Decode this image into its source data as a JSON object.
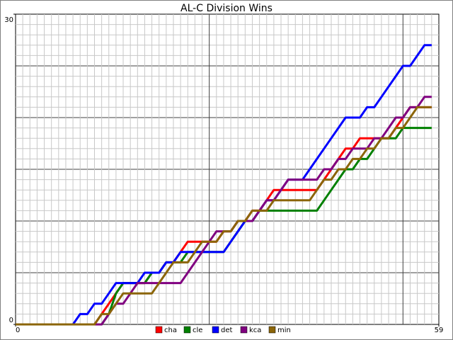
{
  "chart_data": {
    "type": "line",
    "title": "AL-C Division Wins",
    "x": [
      0,
      1,
      2,
      3,
      4,
      5,
      6,
      7,
      8,
      9,
      10,
      11,
      12,
      13,
      14,
      15,
      16,
      17,
      18,
      19,
      20,
      21,
      22,
      23,
      24,
      25,
      26,
      27,
      28,
      29,
      30,
      31,
      32,
      33,
      34,
      35,
      36,
      37,
      38,
      39,
      40,
      41,
      42,
      43,
      44,
      45,
      46,
      47,
      48,
      49,
      50,
      51,
      52,
      53,
      54,
      55,
      56,
      57,
      58
    ],
    "series": [
      {
        "name": "cha",
        "color": "#ff0000",
        "values": [
          0,
          0,
          0,
          0,
          0,
          0,
          0,
          0,
          0,
          0,
          0,
          0,
          1,
          2,
          3,
          4,
          4,
          4,
          4,
          5,
          5,
          6,
          6,
          7,
          8,
          8,
          8,
          8,
          8,
          9,
          9,
          10,
          10,
          11,
          11,
          12,
          13,
          13,
          13,
          13,
          13,
          13,
          13,
          14,
          15,
          16,
          17,
          17,
          18,
          18,
          18,
          18,
          18,
          19,
          20,
          21,
          21,
          21,
          21
        ]
      },
      {
        "name": "cle",
        "color": "#008000",
        "values": [
          0,
          0,
          0,
          0,
          0,
          0,
          0,
          0,
          0,
          0,
          0,
          0,
          0,
          1,
          3,
          4,
          4,
          4,
          4,
          5,
          5,
          6,
          6,
          6,
          7,
          7,
          7,
          7,
          7,
          7,
          8,
          9,
          10,
          10,
          11,
          11,
          11,
          11,
          11,
          11,
          11,
          11,
          11,
          12,
          13,
          14,
          15,
          15,
          16,
          16,
          17,
          18,
          18,
          18,
          19,
          19,
          19,
          19,
          19
        ]
      },
      {
        "name": "det",
        "color": "#0000ff",
        "values": [
          0,
          0,
          0,
          0,
          0,
          0,
          0,
          0,
          0,
          1,
          1,
          2,
          2,
          3,
          4,
          4,
          4,
          4,
          5,
          5,
          5,
          6,
          6,
          7,
          7,
          7,
          7,
          7,
          7,
          7,
          8,
          9,
          10,
          10,
          11,
          12,
          12,
          13,
          14,
          14,
          14,
          15,
          16,
          17,
          18,
          19,
          20,
          20,
          20,
          21,
          21,
          22,
          23,
          24,
          25,
          25,
          26,
          27,
          27
        ]
      },
      {
        "name": "kca",
        "color": "#800080",
        "values": [
          0,
          0,
          0,
          0,
          0,
          0,
          0,
          0,
          0,
          0,
          0,
          0,
          0,
          1,
          2,
          2,
          3,
          4,
          4,
          4,
          4,
          4,
          4,
          4,
          5,
          6,
          7,
          8,
          9,
          9,
          9,
          10,
          10,
          10,
          11,
          12,
          12,
          13,
          14,
          14,
          14,
          14,
          14,
          15,
          15,
          16,
          16,
          17,
          17,
          17,
          18,
          18,
          19,
          20,
          20,
          21,
          21,
          22,
          22
        ]
      },
      {
        "name": "min",
        "color": "#8b6508",
        "values": [
          0,
          0,
          0,
          0,
          0,
          0,
          0,
          0,
          0,
          0,
          0,
          0,
          1,
          1,
          2,
          3,
          3,
          3,
          3,
          3,
          4,
          5,
          6,
          6,
          6,
          7,
          8,
          8,
          8,
          9,
          9,
          10,
          10,
          11,
          11,
          11,
          12,
          12,
          12,
          12,
          12,
          12,
          13,
          14,
          14,
          15,
          15,
          16,
          16,
          17,
          17,
          18,
          18,
          19,
          19,
          20,
          21,
          21,
          21
        ]
      }
    ],
    "xlim": [
      0,
      59
    ],
    "xticks": [
      0,
      59
    ],
    "ylim": [
      0,
      30
    ],
    "yticks": [
      0,
      30
    ],
    "grid": true,
    "legend": "bottom"
  }
}
